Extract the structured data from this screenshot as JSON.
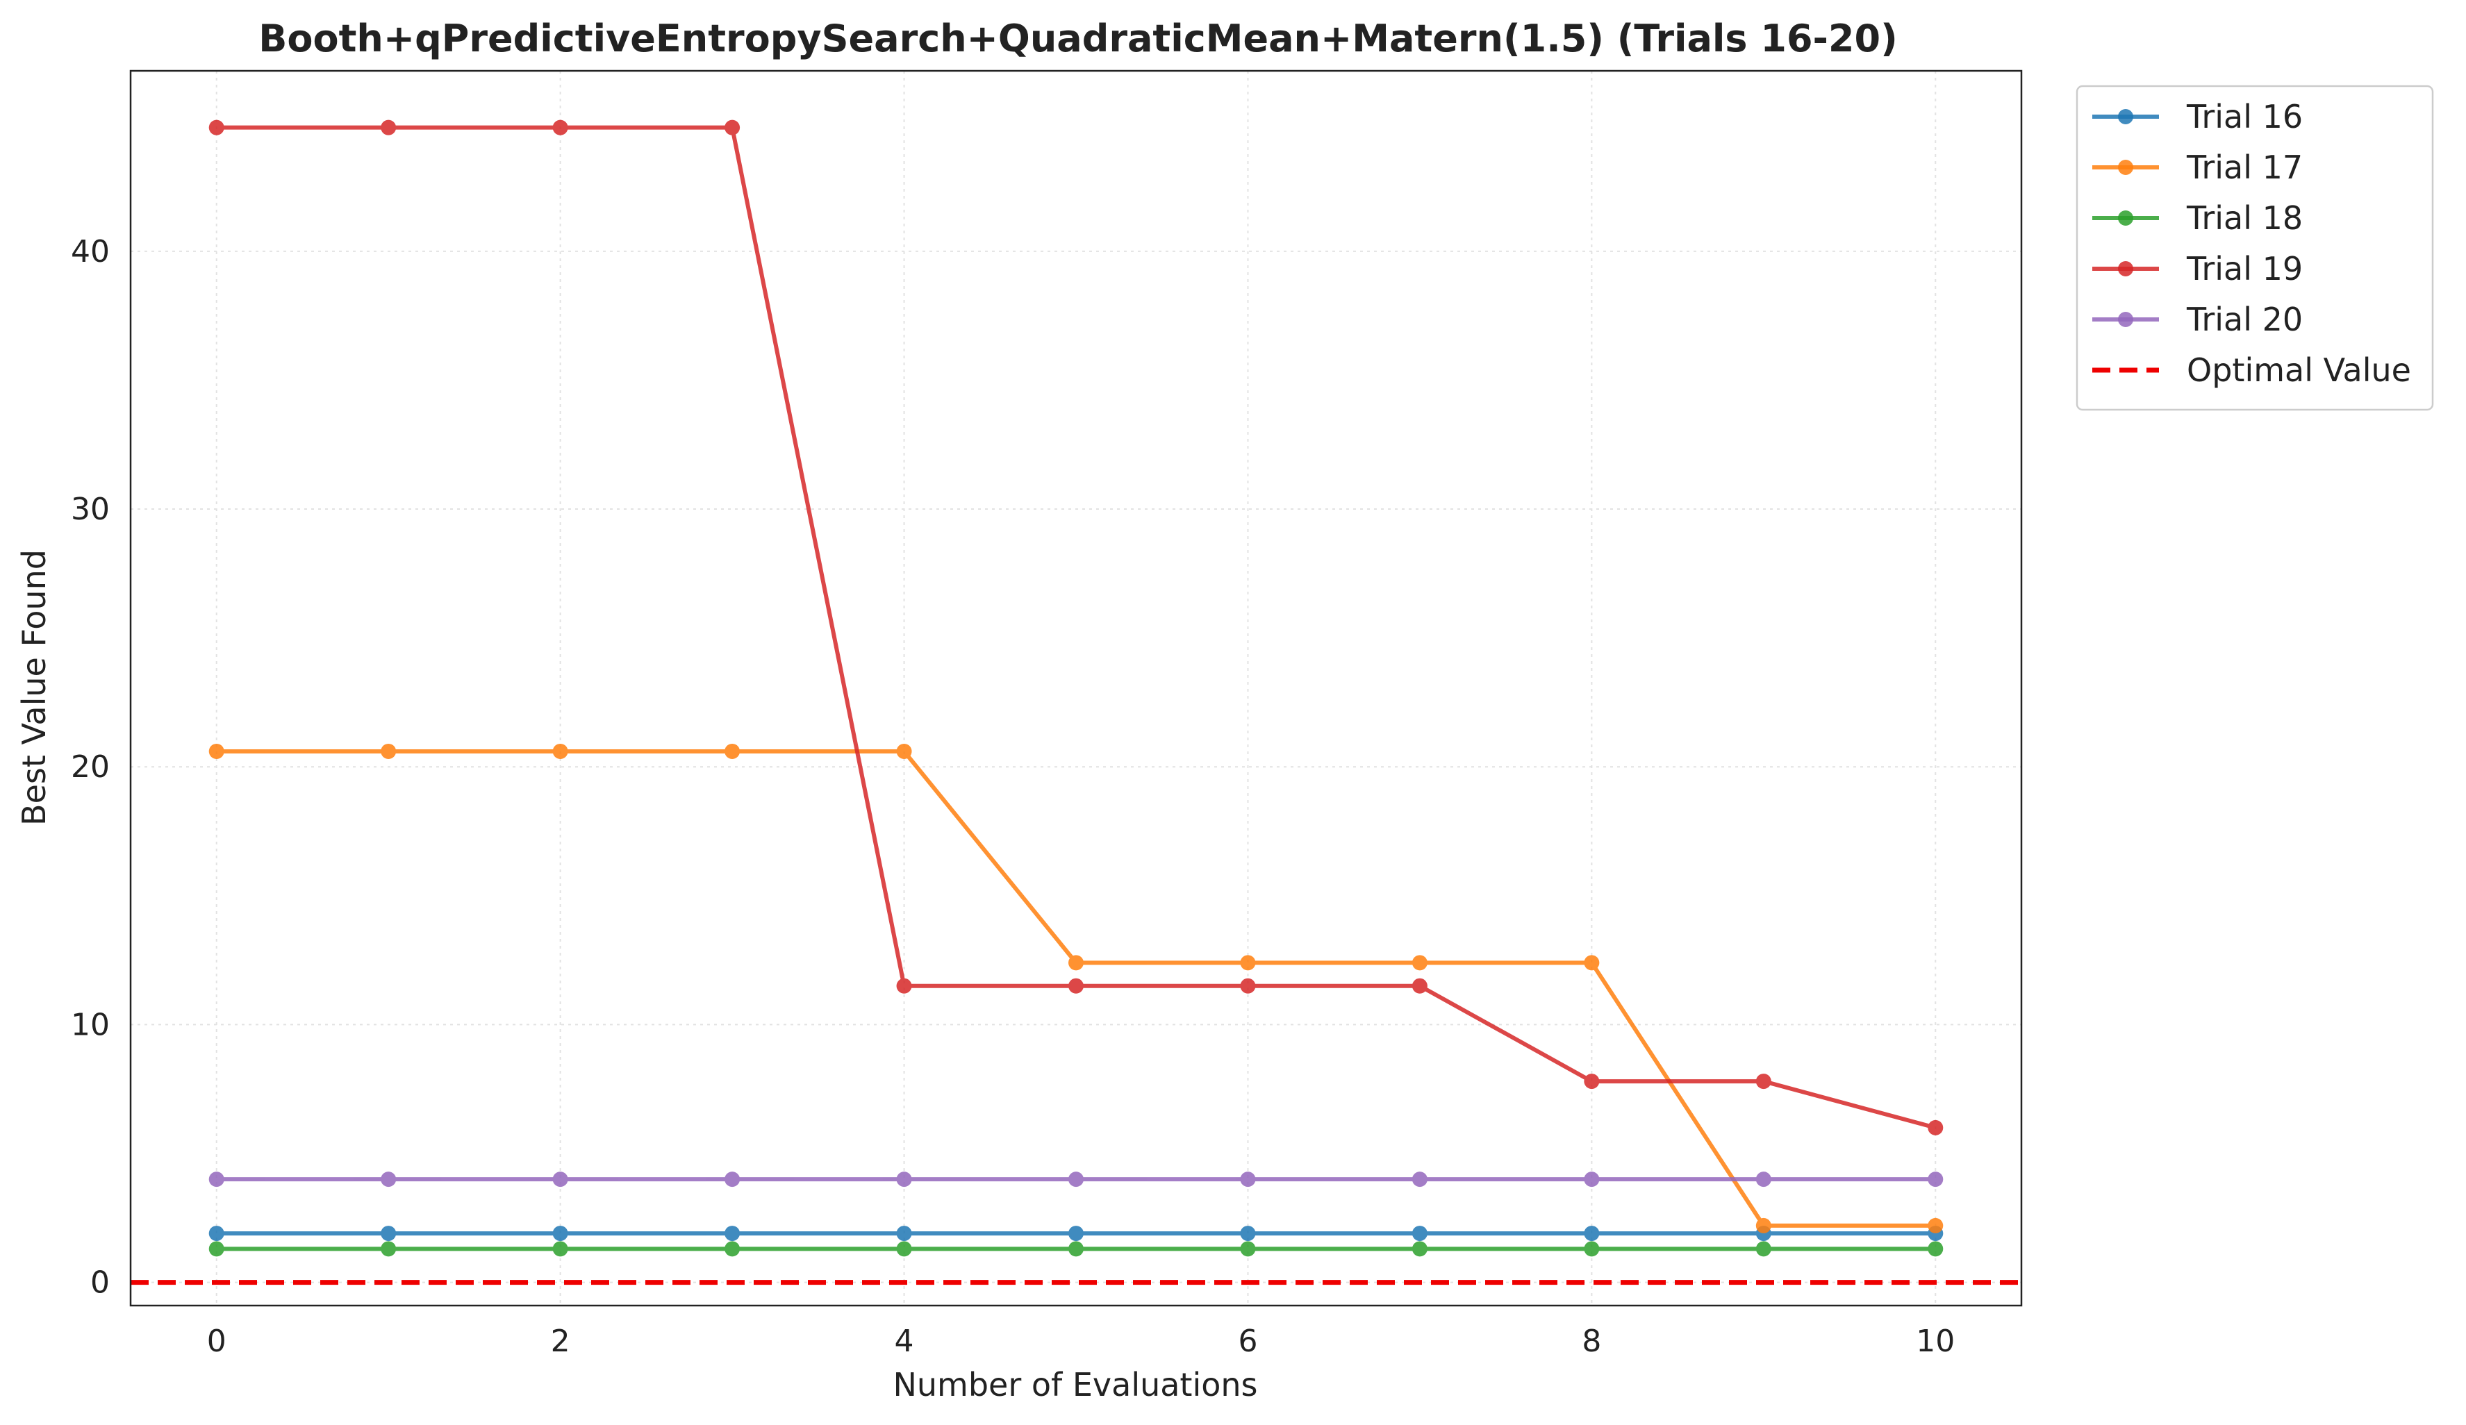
{
  "chart_data": {
    "type": "line",
    "title": "Booth+qPredictiveEntropySearch+QuadraticMean+Matern(1.5) (Trials 16-20)",
    "xlabel": "Number of Evaluations",
    "ylabel": "Best Value Found",
    "xlim": [
      -0.5,
      10.5
    ],
    "ylim": [
      -0.9,
      47.0
    ],
    "xticks": [
      0,
      2,
      4,
      6,
      8,
      10
    ],
    "yticks": [
      0,
      10,
      20,
      30,
      40
    ],
    "grid": true,
    "legend_position": "outside-top-right",
    "x": [
      0,
      1,
      2,
      3,
      4,
      5,
      6,
      7,
      8,
      9,
      10
    ],
    "series": [
      {
        "name": "Trial 16",
        "color": "#1f77b4",
        "values": [
          1.9,
          1.9,
          1.9,
          1.9,
          1.9,
          1.9,
          1.9,
          1.9,
          1.9,
          1.9,
          1.9
        ]
      },
      {
        "name": "Trial 17",
        "color": "#ff7f0e",
        "values": [
          20.6,
          20.6,
          20.6,
          20.6,
          20.6,
          12.4,
          12.4,
          12.4,
          12.4,
          2.2,
          2.2
        ]
      },
      {
        "name": "Trial 18",
        "color": "#2ca02c",
        "values": [
          1.3,
          1.3,
          1.3,
          1.3,
          1.3,
          1.3,
          1.3,
          1.3,
          1.3,
          1.3,
          1.3
        ]
      },
      {
        "name": "Trial 19",
        "color": "#d62728",
        "values": [
          44.8,
          44.8,
          44.8,
          44.8,
          11.5,
          11.5,
          11.5,
          11.5,
          7.8,
          7.8,
          6.0
        ]
      },
      {
        "name": "Trial 20",
        "color": "#9467bd",
        "values": [
          4.0,
          4.0,
          4.0,
          4.0,
          4.0,
          4.0,
          4.0,
          4.0,
          4.0,
          4.0,
          4.0
        ]
      }
    ],
    "reference_line": {
      "name": "Optimal Value",
      "value": 0,
      "color": "#ee0000",
      "style": "dashed"
    }
  }
}
